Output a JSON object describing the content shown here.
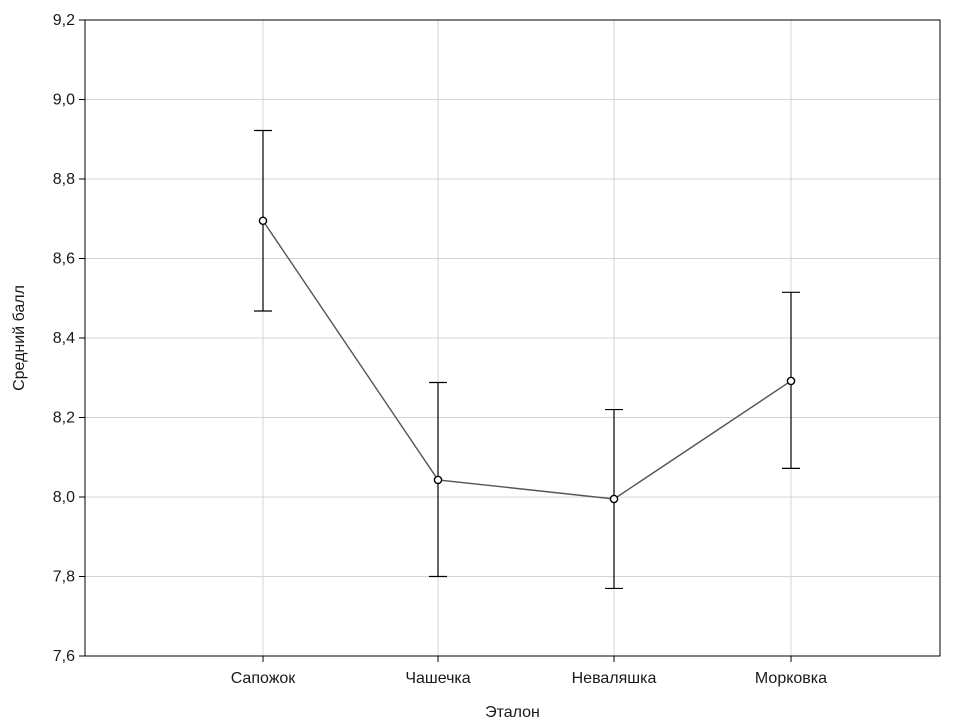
{
  "chart_data": {
    "type": "line",
    "title": "",
    "xlabel": "Эталон",
    "ylabel": "Средний балл",
    "categories": [
      "Сапожок",
      "Чашечка",
      "Неваляшка",
      "Морковка"
    ],
    "series": [
      {
        "values": [
          8.695,
          8.043,
          7.995,
          8.292
        ],
        "error_low": [
          8.468,
          7.8,
          7.77,
          8.072
        ],
        "error_high": [
          8.922,
          8.288,
          8.22,
          8.515
        ]
      }
    ],
    "ylim": [
      7.6,
      9.2
    ],
    "yticks": [
      "7,6",
      "7,8",
      "8,0",
      "8,2",
      "8,4",
      "8,6",
      "8,8",
      "9,0",
      "9,2"
    ],
    "grid": true,
    "colors": {
      "line": "#555555",
      "grid": "#d4d4d4",
      "axis": "#000000"
    }
  }
}
